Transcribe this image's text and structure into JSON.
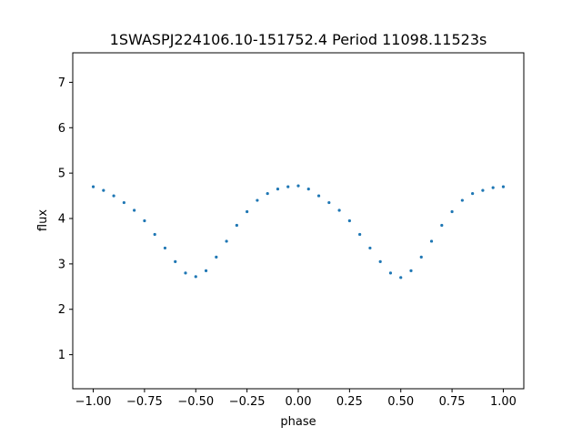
{
  "chart_data": {
    "type": "scatter",
    "title": "1SWASPJ224106.10-151752.4 Period 11098.11523s",
    "xlabel": "phase",
    "ylabel": "flux",
    "xlim": [
      -1.1,
      1.1
    ],
    "ylim": [
      0.25,
      7.65
    ],
    "x_ticks": [
      -1.0,
      -0.75,
      -0.5,
      -0.25,
      0.0,
      0.25,
      0.5,
      0.75,
      1.0
    ],
    "x_tick_labels": [
      "−1.00",
      "−0.75",
      "−0.50",
      "−0.25",
      "0.00",
      "0.25",
      "0.50",
      "0.75",
      "1.00"
    ],
    "y_ticks": [
      1,
      2,
      3,
      4,
      5,
      6,
      7
    ],
    "y_tick_labels": [
      "1",
      "2",
      "3",
      "4",
      "5",
      "6",
      "7"
    ],
    "marker_color": "#1f77b4",
    "grid": false,
    "series": [
      {
        "x": [
          -1.0,
          -0.95,
          -0.9,
          -0.85,
          -0.8,
          -0.75,
          -0.7,
          -0.65,
          -0.6,
          -0.55,
          -0.5,
          -0.45,
          -0.4,
          -0.35,
          -0.3,
          -0.25,
          -0.2,
          -0.15,
          -0.1,
          -0.05,
          0.0,
          0.05,
          0.1,
          0.15,
          0.2,
          0.25,
          0.3,
          0.35,
          0.4,
          0.45,
          0.5,
          0.55,
          0.6,
          0.65,
          0.7,
          0.75,
          0.8,
          0.85,
          0.9,
          0.95,
          1.0
        ],
        "y": [
          4.7,
          4.62,
          4.5,
          4.35,
          4.18,
          3.95,
          3.65,
          3.35,
          3.05,
          2.8,
          2.72,
          2.85,
          3.15,
          3.5,
          3.85,
          4.15,
          4.4,
          4.55,
          4.65,
          4.7,
          4.72,
          4.65,
          4.5,
          4.35,
          4.18,
          3.95,
          3.65,
          3.35,
          3.05,
          2.8,
          2.7,
          2.85,
          3.15,
          3.5,
          3.85,
          4.15,
          4.4,
          4.55,
          4.62,
          4.68,
          4.7
        ]
      }
    ]
  }
}
